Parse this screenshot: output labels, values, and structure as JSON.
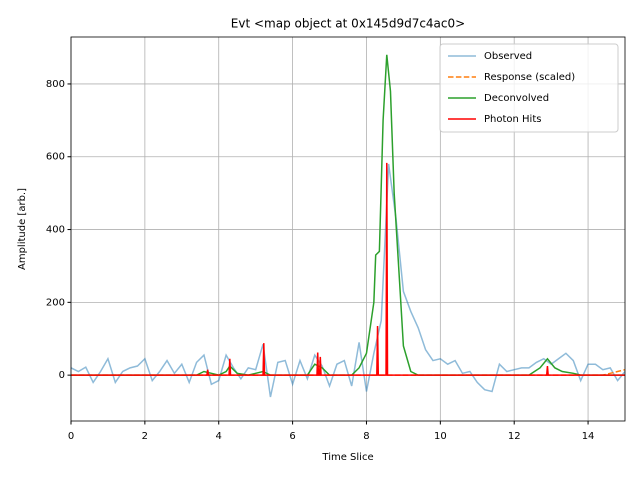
{
  "chart_data": {
    "type": "line",
    "title": "Evt <map object at 0x145d9d7c4ac0>",
    "x_label": "Time Slice",
    "y_label": "Amplitude [arb.]",
    "xlim": [
      0,
      15
    ],
    "ylim": [
      -126,
      929
    ],
    "xticks": [
      0,
      2,
      4,
      6,
      8,
      10,
      12,
      14
    ],
    "yticks": [
      0,
      200,
      400,
      600,
      800
    ],
    "grid": true,
    "legend": "upper right",
    "series": [
      {
        "name": "Observed",
        "color": "#1f77b4",
        "style": "solid",
        "opacity": 0.5,
        "x": [
          0,
          0.2,
          0.4,
          0.6,
          0.8,
          1.0,
          1.2,
          1.4,
          1.6,
          1.8,
          2.0,
          2.2,
          2.4,
          2.6,
          2.8,
          3.0,
          3.2,
          3.4,
          3.6,
          3.8,
          4.0,
          4.2,
          4.4,
          4.6,
          4.8,
          5.0,
          5.2,
          5.4,
          5.6,
          5.8,
          6.0,
          6.2,
          6.4,
          6.6,
          6.8,
          7.0,
          7.2,
          7.4,
          7.6,
          7.8,
          8.0,
          8.2,
          8.4,
          8.6,
          8.8,
          9.0,
          9.2,
          9.4,
          9.6,
          9.8,
          10.0,
          10.2,
          10.4,
          10.6,
          10.8,
          11.0,
          11.2,
          11.4,
          11.6,
          11.8,
          12.0,
          12.2,
          12.4,
          12.6,
          12.8,
          13.0,
          13.2,
          13.4,
          13.6,
          13.8,
          14.0,
          14.2,
          14.4,
          14.6,
          14.8,
          15.0
        ],
        "values": [
          20,
          10,
          22,
          -20,
          10,
          45,
          -20,
          10,
          20,
          25,
          45,
          -15,
          10,
          40,
          5,
          30,
          -20,
          35,
          55,
          -25,
          -15,
          55,
          20,
          -10,
          20,
          15,
          85,
          -60,
          35,
          40,
          -25,
          40,
          -10,
          55,
          25,
          -30,
          30,
          40,
          -30,
          90,
          -45,
          60,
          150,
          580,
          430,
          230,
          175,
          130,
          70,
          40,
          45,
          30,
          40,
          5,
          10,
          -20,
          -40,
          -45,
          30,
          10,
          15,
          20,
          20,
          35,
          45,
          30,
          45,
          60,
          40,
          -15,
          30,
          30,
          15,
          20,
          -15,
          10
        ]
      },
      {
        "name": "Response (scaled)",
        "color": "#ff7f0e",
        "style": "dashed",
        "opacity": 1,
        "x": [
          0,
          14.4,
          14.6,
          14.8,
          15
        ],
        "values": [
          0,
          0,
          5,
          10,
          15
        ]
      },
      {
        "name": "Deconvolved",
        "color": "#2ca02c",
        "style": "solid",
        "opacity": 1,
        "x": [
          0,
          3.4,
          3.6,
          3.8,
          4.0,
          4.2,
          4.3,
          4.5,
          4.8,
          5.0,
          5.2,
          5.4,
          6.4,
          6.6,
          6.8,
          7.0,
          7.6,
          7.8,
          8.0,
          8.2,
          8.25,
          8.35,
          8.45,
          8.55,
          8.65,
          8.75,
          8.9,
          9.0,
          9.2,
          9.4,
          12.4,
          12.7,
          12.9,
          13.1,
          13.3,
          13.6,
          13.8,
          15
        ],
        "values": [
          0,
          0,
          10,
          5,
          0,
          10,
          25,
          5,
          0,
          5,
          10,
          0,
          0,
          30,
          20,
          0,
          0,
          20,
          60,
          200,
          330,
          340,
          700,
          880,
          780,
          500,
          250,
          80,
          10,
          0,
          0,
          20,
          45,
          20,
          10,
          5,
          0,
          0
        ]
      },
      {
        "name": "Photon Hits",
        "color": "#ff0000",
        "style": "solid",
        "opacity": 1,
        "x": [
          0,
          3.68,
          3.7,
          3.72,
          4.28,
          4.3,
          4.32,
          5.2,
          5.22,
          5.24,
          6.66,
          6.68,
          6.7,
          6.73,
          6.75,
          6.77,
          8.28,
          8.3,
          8.32,
          8.53,
          8.55,
          8.57,
          12.88,
          12.9,
          12.92,
          15
        ],
        "values": [
          0,
          0,
          15,
          0,
          0,
          45,
          0,
          0,
          88,
          0,
          0,
          62,
          0,
          0,
          50,
          0,
          0,
          135,
          0,
          0,
          583,
          0,
          0,
          25,
          0,
          0
        ]
      }
    ]
  }
}
